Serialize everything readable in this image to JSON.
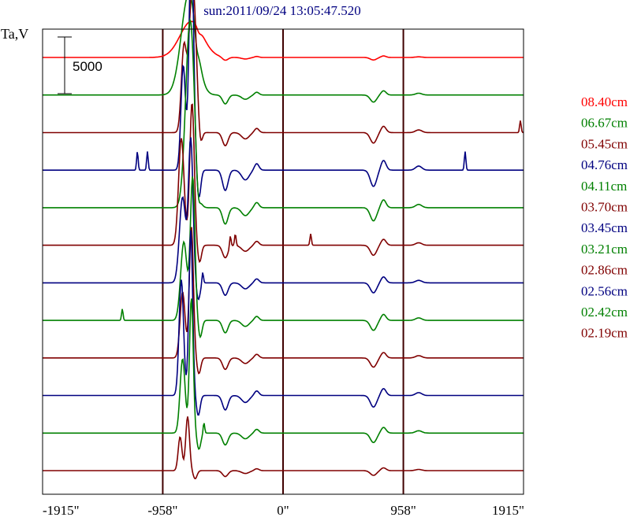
{
  "chart_data": {
    "type": "line",
    "title": "sun:2011/09/24 13:05:47.520",
    "ylabel": "Ta,V",
    "scale_bar_label": "5000",
    "xlim": [
      -1915,
      1915
    ],
    "x_ticks": [
      -1915,
      -958,
      0,
      958,
      1915
    ],
    "x_tick_labels": [
      "-1915\"",
      "-958\"",
      "0\"",
      "958\"",
      "1915\""
    ],
    "vertical_lines_at": [
      -958,
      0,
      958
    ],
    "legend_position": "right",
    "colors": {
      "red": "#ff0000",
      "green": "#008000",
      "dark_red": "#800000",
      "navy": "#000080",
      "axis": "#000000",
      "marker_line": "#400000",
      "title": "#000080"
    },
    "series": [
      {
        "name": "08.40cm",
        "color": "red",
        "baseline": 5500,
        "amp": 480,
        "peaks": [
          {
            "x": -730,
            "w": 90,
            "h": 1.0
          }
        ],
        "noise": []
      },
      {
        "name": "06.67cm",
        "color": "green",
        "baseline": 5000,
        "amp": 1350,
        "peaks": [
          {
            "x": -750,
            "w": 60,
            "h": 1.0
          }
        ],
        "noise": []
      },
      {
        "name": "05.45cm",
        "color": "dark_red",
        "baseline": 4500,
        "amp": 2000,
        "peaks": [
          {
            "x": -720,
            "w": 28,
            "h": 1.0
          },
          {
            "x": -790,
            "w": 20,
            "h": 0.55
          }
        ],
        "noise": [
          1890
        ]
      },
      {
        "name": "04.76cm",
        "color": "navy",
        "baseline": 4000,
        "amp": 3100,
        "peaks": [
          {
            "x": -730,
            "w": 18,
            "h": 1.0
          },
          {
            "x": -795,
            "w": 18,
            "h": 0.45
          }
        ],
        "noise": [
          -1160,
          -1080,
          1450
        ]
      },
      {
        "name": "04.11cm",
        "color": "green",
        "baseline": 3500,
        "amp": 2500,
        "peaks": [
          {
            "x": -740,
            "w": 35,
            "h": 1.0
          }
        ],
        "noise": []
      },
      {
        "name": "03.70cm",
        "color": "dark_red",
        "baseline": 3000,
        "amp": 1900,
        "peaks": [
          {
            "x": -725,
            "w": 18,
            "h": 1.0
          },
          {
            "x": -810,
            "w": 22,
            "h": 0.75
          }
        ],
        "noise": [
          -380,
          -420,
          220
        ]
      },
      {
        "name": "03.45cm",
        "color": "navy",
        "baseline": 2500,
        "amp": 1900,
        "peaks": [
          {
            "x": -735,
            "w": 18,
            "h": 1.0
          },
          {
            "x": -800,
            "w": 25,
            "h": 0.6
          }
        ],
        "noise": [
          -640
        ]
      },
      {
        "name": "03.21cm",
        "color": "green",
        "baseline": 2000,
        "amp": 1900,
        "peaks": [
          {
            "x": -720,
            "w": 18,
            "h": 1.0
          },
          {
            "x": -790,
            "w": 25,
            "h": 0.55
          }
        ],
        "noise": [
          -1280
        ]
      },
      {
        "name": "02.86cm",
        "color": "dark_red",
        "baseline": 1500,
        "amp": 1750,
        "peaks": [
          {
            "x": -730,
            "w": 16,
            "h": 1.0
          },
          {
            "x": -800,
            "w": 20,
            "h": 0.5
          }
        ],
        "noise": []
      },
      {
        "name": "02.56cm",
        "color": "navy",
        "baseline": 1000,
        "amp": 2200,
        "peaks": [
          {
            "x": -735,
            "w": 15,
            "h": 1.0
          },
          {
            "x": -810,
            "w": 18,
            "h": 0.7
          }
        ],
        "noise": []
      },
      {
        "name": "02.42cm",
        "color": "green",
        "baseline": 500,
        "amp": 1800,
        "peaks": [
          {
            "x": -730,
            "w": 15,
            "h": 1.0
          },
          {
            "x": -800,
            "w": 20,
            "h": 0.55
          }
        ],
        "noise": [
          -630
        ]
      },
      {
        "name": "02.19cm",
        "color": "dark_red",
        "baseline": 0,
        "amp": 900,
        "peaks": [
          {
            "x": -760,
            "w": 15,
            "h": 0.8
          },
          {
            "x": -820,
            "w": 15,
            "h": 0.5
          }
        ],
        "noise": []
      }
    ]
  }
}
